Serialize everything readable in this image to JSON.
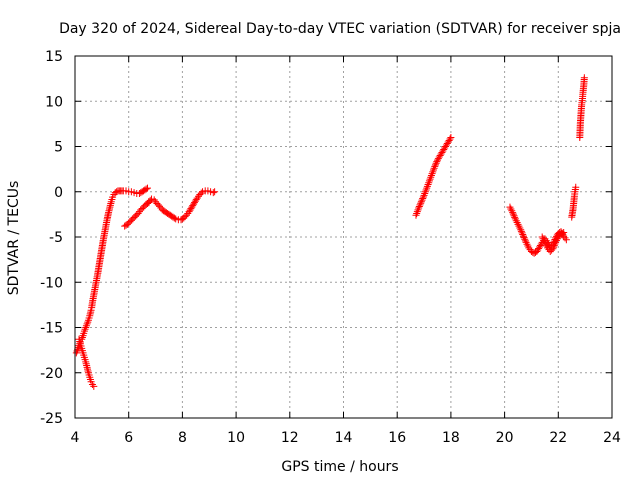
{
  "chart_data": {
    "type": "scatter",
    "title": "Day 320 of 2024, Sidereal Day-to-day VTEC variation (SDTVAR) for receiver spja",
    "xlabel": "GPS time / hours",
    "ylabel": "SDTVAR / TECUs",
    "xlim": [
      4,
      24
    ],
    "ylim": [
      -25,
      15
    ],
    "xticks": [
      4,
      6,
      8,
      10,
      12,
      14,
      16,
      18,
      20,
      22,
      24
    ],
    "yticks": [
      15,
      10,
      5,
      0,
      -5,
      -10,
      -15,
      -20,
      -25
    ],
    "grid": true,
    "marker": "plus",
    "color": "#ff0000",
    "series": [
      {
        "x": [
          4.05,
          4.1,
          4.15,
          4.2,
          4.25,
          4.3,
          4.35,
          4.4,
          4.45,
          4.5,
          4.55,
          4.6,
          4.62,
          4.65,
          4.7,
          4.75,
          4.8,
          4.85,
          4.9,
          4.95,
          5.0,
          5.05,
          5.1,
          5.15,
          5.2,
          5.25,
          5.3,
          5.35,
          5.4,
          5.45,
          5.5,
          5.55,
          5.6,
          5.65,
          5.7,
          5.75,
          5.8,
          5.9,
          6.0,
          6.1,
          6.2,
          6.3,
          6.4,
          6.5,
          6.6,
          6.7
        ],
        "y": [
          -17.8,
          -17.4,
          -17.0,
          -16.6,
          -16.3,
          -15.9,
          -15.4,
          -15.0,
          -14.6,
          -14.2,
          -13.7,
          -13.1,
          -12.8,
          -12.2,
          -11.4,
          -10.6,
          -9.8,
          -9.0,
          -8.1,
          -7.2,
          -6.3,
          -5.4,
          -4.6,
          -3.8,
          -3.0,
          -2.3,
          -1.7,
          -1.1,
          -0.6,
          -0.3,
          -0.1,
          0.0,
          0.1,
          0.1,
          0.1,
          0.1,
          0.1,
          0.1,
          0.0,
          0.0,
          -0.1,
          -0.2,
          -0.2,
          0.0,
          0.2,
          0.4
        ]
      },
      {
        "x": [
          4.15,
          4.2,
          4.25,
          4.3,
          4.35,
          4.4,
          4.45,
          4.5,
          4.55,
          4.6,
          4.65,
          4.7
        ],
        "y": [
          -16.3,
          -16.8,
          -17.3,
          -17.8,
          -18.3,
          -18.8,
          -19.4,
          -20.0,
          -20.5,
          -21.0,
          -21.3,
          -21.5
        ]
      },
      {
        "x": [
          5.85,
          5.95,
          6.05,
          6.15,
          6.25,
          6.35,
          6.45,
          6.55,
          6.65,
          6.75
        ],
        "y": [
          -3.8,
          -3.6,
          -3.3,
          -3.0,
          -2.7,
          -2.4,
          -2.0,
          -1.7,
          -1.4,
          -1.2
        ]
      },
      {
        "x": [
          6.75,
          6.85,
          6.95,
          7.05,
          7.15,
          7.25,
          7.35,
          7.45,
          7.55,
          7.65,
          7.75,
          7.85,
          7.95,
          8.05,
          8.15,
          8.25,
          8.35,
          8.45,
          8.55,
          8.65,
          8.75,
          8.85,
          8.95,
          9.05,
          9.15,
          9.2
        ],
        "y": [
          -1.1,
          -0.8,
          -0.9,
          -1.3,
          -1.6,
          -2.0,
          -2.2,
          -2.4,
          -2.6,
          -2.8,
          -3.0,
          -3.1,
          -3.1,
          -2.9,
          -2.6,
          -2.2,
          -1.7,
          -1.2,
          -0.7,
          -0.3,
          0.0,
          0.1,
          0.1,
          0.0,
          -0.1,
          0.0
        ]
      },
      {
        "x": [
          16.7,
          16.8,
          16.9,
          17.0,
          17.1,
          17.2,
          17.3,
          17.4,
          17.5,
          17.6,
          17.7,
          17.8,
          17.9,
          18.0
        ],
        "y": [
          -2.6,
          -1.8,
          -1.1,
          -0.4,
          0.4,
          1.2,
          2.0,
          2.8,
          3.5,
          4.0,
          4.5,
          5.0,
          5.5,
          6.0
        ]
      },
      {
        "x": [
          20.2,
          20.3,
          20.4,
          20.5,
          20.6,
          20.7,
          20.8,
          20.9,
          21.0,
          21.1,
          21.2,
          21.3,
          21.4,
          21.5,
          21.6,
          21.7,
          21.8,
          21.9,
          22.0,
          22.1,
          22.2,
          22.3
        ],
        "y": [
          -1.7,
          -2.3,
          -3.0,
          -3.6,
          -4.2,
          -4.9,
          -5.6,
          -6.2,
          -6.6,
          -6.8,
          -6.6,
          -6.1,
          -5.6,
          -5.2,
          -5.6,
          -6.1,
          -5.8,
          -5.1,
          -4.6,
          -4.4,
          -4.9,
          -5.3
        ]
      },
      {
        "x": [
          21.4,
          21.5,
          21.6,
          21.7,
          21.8,
          21.9,
          22.0,
          22.1,
          22.2
        ],
        "y": [
          -5.0,
          -5.6,
          -6.2,
          -6.6,
          -6.3,
          -5.6,
          -5.0,
          -4.7,
          -4.5
        ]
      },
      {
        "x": [
          22.5,
          22.55,
          22.6,
          22.62,
          22.65
        ],
        "y": [
          -2.8,
          -1.9,
          -0.5,
          0.0,
          0.5
        ]
      },
      {
        "x": [
          22.8,
          22.82,
          22.85,
          22.87,
          22.9,
          22.92,
          22.95,
          22.97
        ],
        "y": [
          6.0,
          7.5,
          8.8,
          9.6,
          10.3,
          11.0,
          11.8,
          12.6
        ]
      }
    ]
  }
}
